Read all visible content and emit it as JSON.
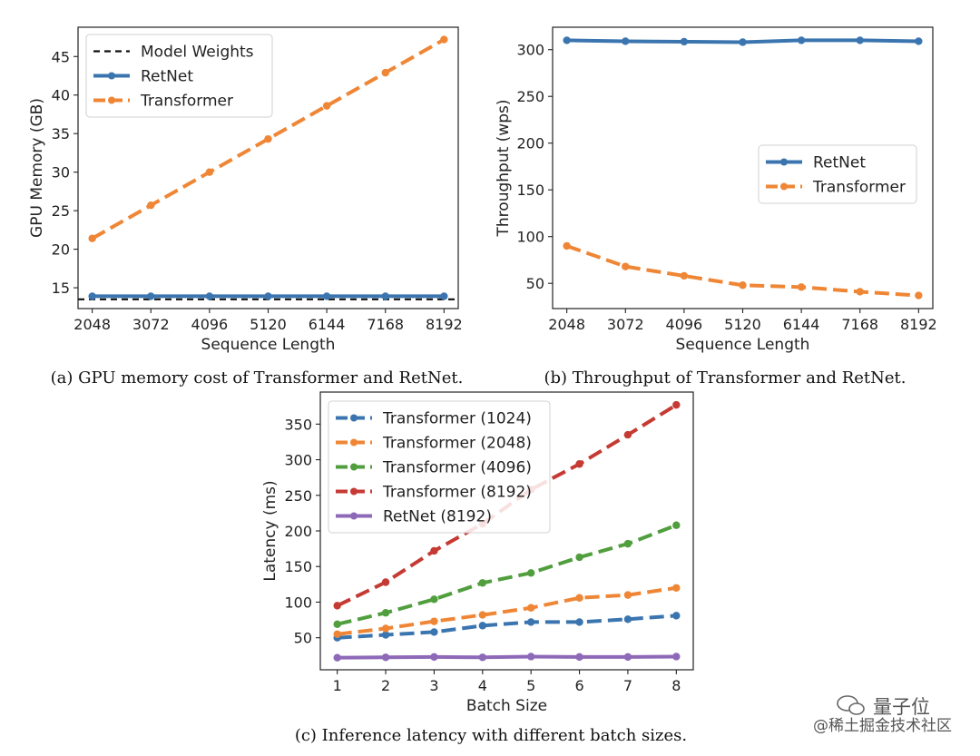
{
  "chart_data": [
    {
      "id": "a",
      "type": "line",
      "caption": "(a) GPU memory cost of Transformer and RetNet.",
      "xlabel": "Sequence Length",
      "ylabel": "GPU Memory (GB)",
      "x": [
        2048,
        3072,
        4096,
        5120,
        6144,
        7168,
        8192
      ],
      "xticks": [
        "2048",
        "3072",
        "4096",
        "5120",
        "6144",
        "7168",
        "8192"
      ],
      "xlim": [
        1800,
        8440
      ],
      "yticks": [
        15,
        20,
        25,
        30,
        35,
        40,
        45
      ],
      "ylim": [
        12.3,
        48.8
      ],
      "legend_loc": "upper-left",
      "reference_lines": [
        {
          "name": "Model Weights",
          "y": 13.5,
          "color": "#111111",
          "dash": "dashed"
        }
      ],
      "series": [
        {
          "name": "RetNet",
          "values": [
            13.9,
            13.9,
            13.9,
            13.9,
            13.9,
            13.9,
            13.9
          ],
          "color": "#3b75af",
          "dash": "solid"
        },
        {
          "name": "Transformer",
          "values": [
            21.4,
            25.7,
            30.0,
            34.3,
            38.6,
            42.9,
            47.2
          ],
          "color": "#ef8636",
          "dash": "dashed"
        }
      ]
    },
    {
      "id": "b",
      "type": "line",
      "caption": "(b) Throughput of Transformer and RetNet.",
      "xlabel": "Sequence Length",
      "ylabel": "Throughput (wps)",
      "x": [
        2048,
        3072,
        4096,
        5120,
        6144,
        7168,
        8192
      ],
      "xticks": [
        "2048",
        "3072",
        "4096",
        "5120",
        "6144",
        "7168",
        "8192"
      ],
      "xlim": [
        1800,
        8440
      ],
      "yticks": [
        50,
        100,
        150,
        200,
        250,
        300
      ],
      "ylim": [
        23,
        324
      ],
      "legend_loc": "center-right",
      "reference_lines": [],
      "series": [
        {
          "name": "RetNet",
          "values": [
            310,
            309,
            308.5,
            308,
            310,
            310,
            309
          ],
          "color": "#3b75af",
          "dash": "solid"
        },
        {
          "name": "Transformer",
          "values": [
            90,
            68,
            58,
            48,
            46,
            41,
            37
          ],
          "color": "#ef8636",
          "dash": "dashed"
        }
      ]
    },
    {
      "id": "c",
      "type": "line",
      "caption": "(c) Inference latency with different batch sizes.",
      "xlabel": "Batch Size",
      "ylabel": "Latency (ms)",
      "x": [
        1,
        2,
        3,
        4,
        5,
        6,
        7,
        8
      ],
      "xticks": [
        "1",
        "2",
        "3",
        "4",
        "5",
        "6",
        "7",
        "8"
      ],
      "xlim": [
        0.65,
        8.35
      ],
      "yticks": [
        50,
        100,
        150,
        200,
        250,
        300,
        350
      ],
      "ylim": [
        5,
        395
      ],
      "legend_loc": "upper-left",
      "reference_lines": [],
      "series": [
        {
          "name": "Transformer (1024)",
          "values": [
            50,
            54,
            58,
            67,
            72,
            72,
            76,
            81
          ],
          "color": "#3b75af",
          "dash": "dashed"
        },
        {
          "name": "Transformer (2048)",
          "values": [
            55,
            63,
            73,
            82,
            92,
            106,
            110,
            120
          ],
          "color": "#ef8636",
          "dash": "dashed"
        },
        {
          "name": "Transformer (4096)",
          "values": [
            69,
            85,
            104,
            127,
            141,
            163,
            182,
            208
          ],
          "color": "#519e3e",
          "dash": "dashed"
        },
        {
          "name": "Transformer (8192)",
          "values": [
            95,
            128,
            172,
            210,
            258,
            294,
            335,
            377
          ],
          "color": "#c53a32",
          "dash": "dashed"
        },
        {
          "name": "RetNet (8192)",
          "values": [
            22,
            22.5,
            23,
            22.5,
            23.5,
            23,
            23,
            23.5
          ],
          "color": "#8d69b8",
          "dash": "solid"
        }
      ]
    }
  ],
  "watermark": {
    "line1": "量子位",
    "line2": "@稀土掘金技术社区"
  }
}
